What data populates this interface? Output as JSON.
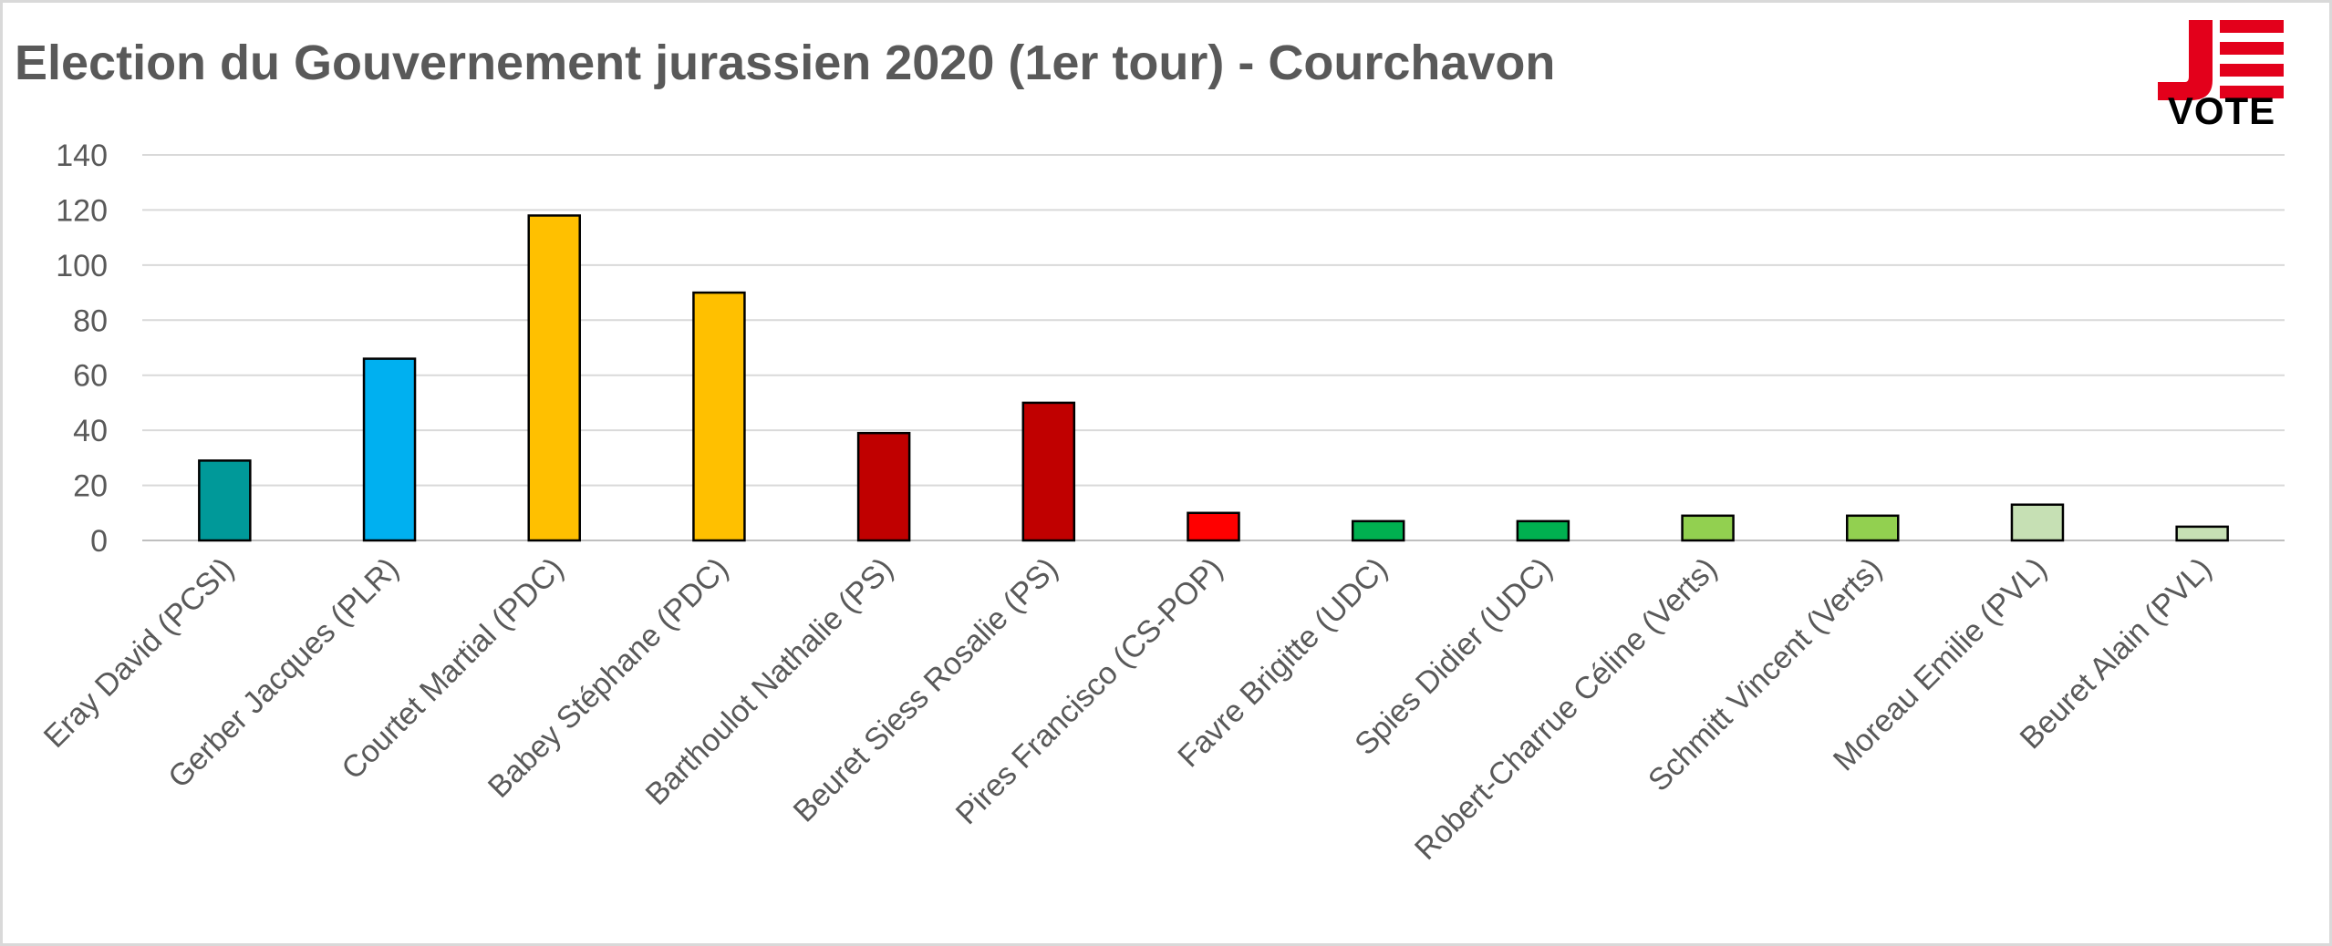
{
  "title": "Election du Gouvernement jurassien 2020 (1er tour) - Courchavon",
  "logo": {
    "text": "VOTE",
    "icon": "je-vote-logo-icon"
  },
  "chart_data": {
    "type": "bar",
    "title": "Election du Gouvernement jurassien 2020 (1er tour) - Courchavon",
    "xlabel": "",
    "ylabel": "",
    "ylim": [
      0,
      140
    ],
    "yticks": [
      0,
      20,
      40,
      60,
      80,
      100,
      120,
      140
    ],
    "grid": true,
    "categories": [
      "Eray David (PCSI)",
      "Gerber Jacques (PLR)",
      "Courtet Martial (PDC)",
      "Babey Stéphane (PDC)",
      "Barthoulot Nathalie (PS)",
      "Beuret Siess Rosalie (PS)",
      "Pires Francisco (CS-POP)",
      "Favre Brigitte (UDC)",
      "Spies Didier (UDC)",
      "Robert-Charrue Céline (Verts)",
      "Schmitt Vincent (Verts)",
      "Moreau Emilie (PVL)",
      "Beuret Alain (PVL)"
    ],
    "values": [
      29,
      66,
      118,
      90,
      39,
      50,
      10,
      7,
      7,
      9,
      9,
      13,
      5
    ],
    "colors": [
      "#009999",
      "#00b0f0",
      "#ffc000",
      "#ffc000",
      "#c00000",
      "#c00000",
      "#ff0000",
      "#00b050",
      "#00b050",
      "#92d050",
      "#92d050",
      "#c6e0b4",
      "#c6e0b4"
    ]
  }
}
